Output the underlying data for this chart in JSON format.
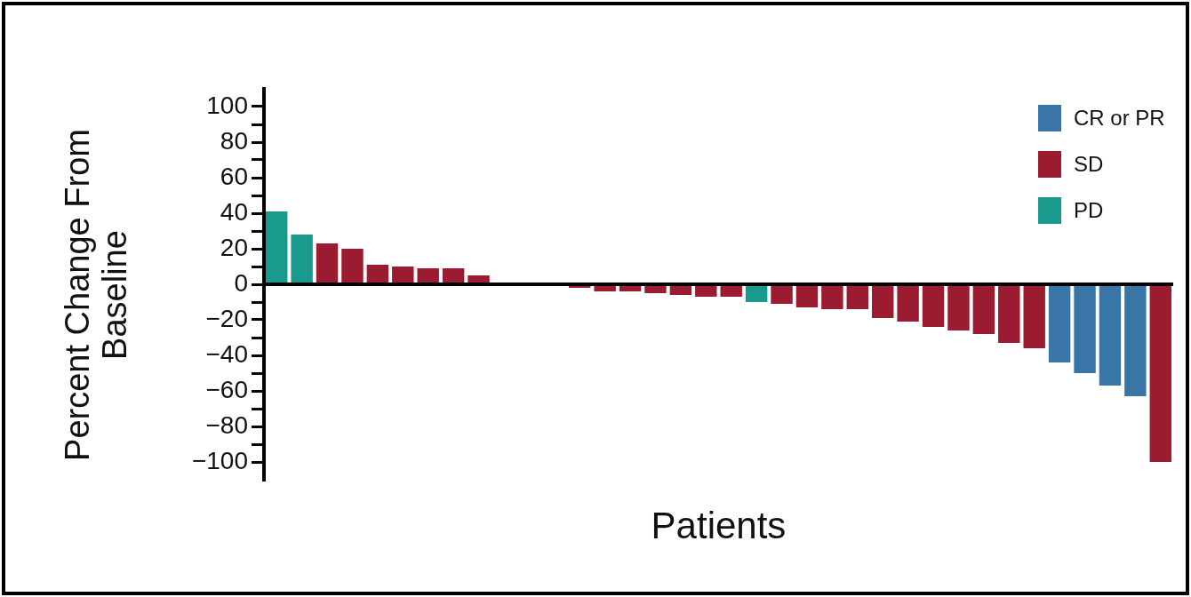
{
  "chart_data": {
    "type": "bar",
    "ylabel": "Percent Change From Baseline",
    "xlabel": "Patients",
    "categories": [
      null,
      null,
      null,
      null,
      null,
      null,
      null,
      null,
      null,
      null,
      null,
      null,
      null,
      null,
      null,
      null,
      null,
      null,
      null,
      null,
      null,
      null,
      null,
      null,
      null,
      null,
      null,
      null,
      null,
      null,
      null,
      null,
      null,
      null,
      null,
      null
    ],
    "series": [
      {
        "name": "CR or PR",
        "color": "#3a75a8",
        "values": [
          null,
          null,
          null,
          null,
          null,
          null,
          null,
          null,
          null,
          null,
          null,
          null,
          null,
          null,
          null,
          null,
          null,
          null,
          null,
          null,
          null,
          null,
          null,
          null,
          null,
          null,
          null,
          null,
          null,
          null,
          null,
          -44,
          -50,
          -57,
          -63,
          null
        ]
      },
      {
        "name": "SD",
        "color": "#9b1b30",
        "values": [
          null,
          null,
          23,
          20,
          11,
          10,
          9,
          9,
          5,
          0,
          0,
          0,
          -2,
          -4,
          -4,
          -5,
          -6,
          -7,
          -7,
          null,
          -11,
          -13,
          -14,
          -14,
          -19,
          -21,
          -24,
          -26,
          -28,
          -33,
          -36,
          null,
          null,
          null,
          null,
          -100
        ]
      },
      {
        "name": "PD",
        "color": "#1a9a8c",
        "values": [
          41,
          28,
          null,
          null,
          null,
          null,
          null,
          null,
          null,
          null,
          null,
          null,
          null,
          null,
          null,
          null,
          null,
          null,
          null,
          -10,
          null,
          null,
          null,
          null,
          null,
          null,
          null,
          null,
          null,
          null,
          null,
          null,
          null,
          null,
          null,
          null
        ]
      }
    ],
    "ylim": [
      -110,
      110
    ],
    "yticks": [
      -100,
      {
        "value": -90,
        "label": null
      },
      -80,
      {
        "value": -70,
        "label": null
      },
      -60,
      {
        "value": -50,
        "label": null
      },
      -40,
      {
        "value": -30,
        "label": null
      },
      -20,
      {
        "value": -10,
        "label": null
      },
      0,
      {
        "value": 10,
        "label": null
      },
      20,
      {
        "value": 30,
        "label": null
      },
      40,
      {
        "value": 50,
        "label": null
      },
      60,
      {
        "value": 70,
        "label": null
      },
      80,
      {
        "value": 90,
        "label": null
      },
      100
    ],
    "legend": "top right"
  }
}
